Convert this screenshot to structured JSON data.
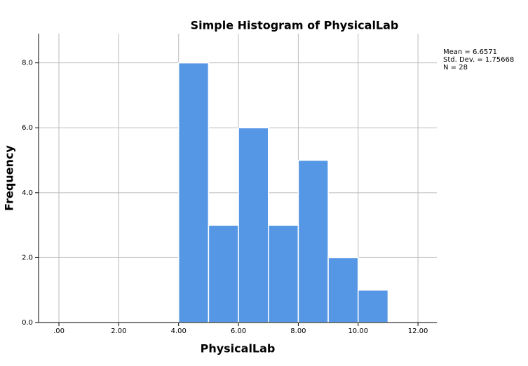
{
  "chart_data": {
    "type": "histogram",
    "title": "Simple Histogram of PhysicalLab",
    "x_label": "PhysicalLab",
    "y_label": "Frequency",
    "bins": [
      4,
      5,
      6,
      7,
      8,
      9,
      10,
      11
    ],
    "counts": [
      8,
      3,
      6,
      3,
      5,
      2,
      1
    ],
    "color": "#5597e5",
    "xlim": [
      -0.68,
      12.63
    ],
    "ylim": [
      0,
      8.9
    ],
    "xticks": [
      {
        "value": 0,
        "label": ".00"
      },
      {
        "value": 2,
        "label": "2.00"
      },
      {
        "value": 4,
        "label": "4.00"
      },
      {
        "value": 6,
        "label": "6.00"
      },
      {
        "value": 8,
        "label": "8.00"
      },
      {
        "value": 10,
        "label": "10.00"
      },
      {
        "value": 12,
        "label": "12.00"
      }
    ],
    "yticks": [
      {
        "value": 0,
        "label": "0.0"
      },
      {
        "value": 2,
        "label": "2.0"
      },
      {
        "value": 4,
        "label": "4.0"
      },
      {
        "value": 6,
        "label": "6.0"
      },
      {
        "value": 8,
        "label": "8.0"
      }
    ],
    "grid": true,
    "annotations": [
      "Mean = 6.6571",
      "Std. Dev. = 1.75668",
      "N = 28"
    ]
  }
}
